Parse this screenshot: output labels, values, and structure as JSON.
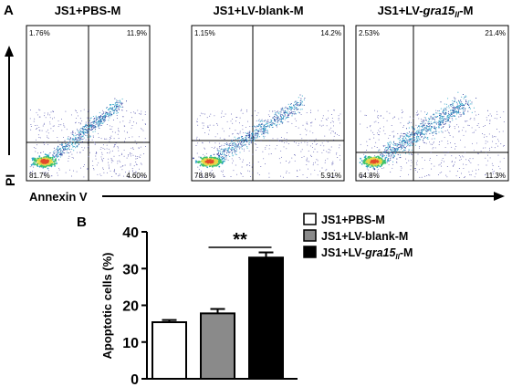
{
  "panel_a": {
    "letter": "A",
    "x_axis_label": "Annexin V",
    "y_axis_label": "PI",
    "plots": [
      {
        "title": "JS1+PBS-M",
        "quadrants": {
          "ul": "1.76%",
          "ur": "11.9%",
          "ll": "81.7%",
          "lr": "4.60%"
        }
      },
      {
        "title": "JS1+LV-blank-M",
        "quadrants": {
          "ul": "1.15%",
          "ur": "14.2%",
          "ll": "78.8%",
          "lr": "5.91%"
        }
      },
      {
        "title_prefix": "JS1+LV-",
        "title_italic": "gra15",
        "title_sub": "II",
        "title_suffix": "-M",
        "quadrants": {
          "ul": "2.53%",
          "ur": "21.4%",
          "ll": "64.8%",
          "lr": "11.3%"
        }
      }
    ]
  },
  "chart_data": {
    "type": "bar",
    "panel_letter": "B",
    "categories": [
      "JS1+PBS-M",
      "JS1+LV-blank-M",
      "JS1+LV-gra15II-M"
    ],
    "values": [
      15.4,
      17.8,
      33.0
    ],
    "errors": [
      0.6,
      1.2,
      1.4
    ],
    "colors": [
      "#ffffff",
      "#8a8a8a",
      "#000000"
    ],
    "ylabel": "Apoptotic cells (%)",
    "ylim": [
      0,
      40
    ],
    "yticks": [
      "0",
      "10",
      "20",
      "30",
      "40"
    ],
    "significance": {
      "between": [
        1,
        2
      ],
      "label": "**"
    },
    "legend": {
      "position": "right",
      "entries": [
        {
          "label": "JS1+PBS-M"
        },
        {
          "label": "JS1+LV-blank-M"
        },
        {
          "prefix": "JS1+LV-",
          "italic": "gra15",
          "sub": "II",
          "suffix": "-M"
        }
      ]
    }
  }
}
